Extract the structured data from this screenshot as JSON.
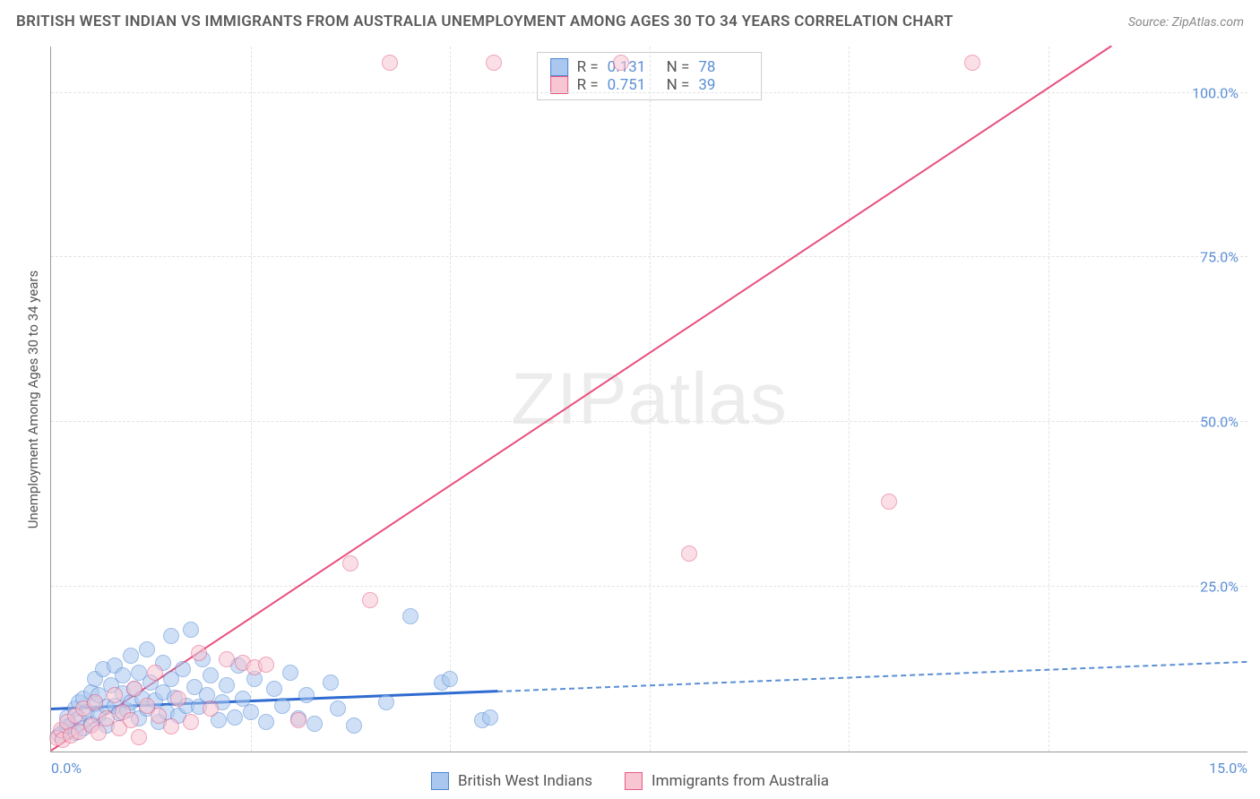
{
  "title": "BRITISH WEST INDIAN VS IMMIGRANTS FROM AUSTRALIA UNEMPLOYMENT AMONG AGES 30 TO 34 YEARS CORRELATION CHART",
  "source_label": "Source: ZipAtlas.com",
  "y_axis_label": "Unemployment Among Ages 30 to 34 years",
  "watermark_a": "ZIP",
  "watermark_b": "atlas",
  "chart": {
    "type": "scatter",
    "xlim": [
      0,
      15
    ],
    "ylim": [
      0,
      107
    ],
    "x_ticks": [
      {
        "pos": 0,
        "label": "0.0%"
      },
      {
        "pos": 15,
        "label": "15.0%"
      }
    ],
    "x_grid": [
      2.5,
      5,
      7.5,
      10,
      12.5
    ],
    "y_ticks": [
      {
        "pos": 25,
        "label": "25.0%"
      },
      {
        "pos": 50,
        "label": "50.0%"
      },
      {
        "pos": 75,
        "label": "75.0%"
      },
      {
        "pos": 100,
        "label": "100.0%"
      }
    ],
    "background_color": "#ffffff",
    "grid_color": "#e2e2e2",
    "axis_color": "#999999",
    "tick_label_color": "#5b8fd6",
    "point_radius": 9,
    "point_opacity": 0.55,
    "series": [
      {
        "name": "British West Indians",
        "fill": "#a9c7ef",
        "stroke": "#4f86d4",
        "r_value": "0.131",
        "n_value": "78",
        "trend": {
          "color": "#2f6bd0",
          "width": 3,
          "x1": 0,
          "y1": 6.3,
          "x2": 5.6,
          "y2": 9.0,
          "dash_to_x": 15,
          "dash_to_y": 13.5
        },
        "points": [
          [
            0.1,
            2.5
          ],
          [
            0.15,
            3.0
          ],
          [
            0.2,
            3.8
          ],
          [
            0.2,
            5.2
          ],
          [
            0.25,
            4.0
          ],
          [
            0.3,
            6.5
          ],
          [
            0.3,
            2.8
          ],
          [
            0.35,
            7.5
          ],
          [
            0.35,
            5.0
          ],
          [
            0.4,
            8.0
          ],
          [
            0.4,
            3.5
          ],
          [
            0.45,
            6.0
          ],
          [
            0.5,
            9.0
          ],
          [
            0.5,
            4.2
          ],
          [
            0.55,
            7.2
          ],
          [
            0.55,
            11.0
          ],
          [
            0.6,
            5.5
          ],
          [
            0.6,
            8.5
          ],
          [
            0.65,
            12.5
          ],
          [
            0.7,
            6.8
          ],
          [
            0.7,
            4.0
          ],
          [
            0.75,
            10.0
          ],
          [
            0.8,
            7.0
          ],
          [
            0.8,
            13.0
          ],
          [
            0.85,
            5.8
          ],
          [
            0.9,
            8.8
          ],
          [
            0.9,
            11.5
          ],
          [
            0.95,
            6.2
          ],
          [
            1.0,
            14.5
          ],
          [
            1.0,
            7.5
          ],
          [
            1.05,
            9.5
          ],
          [
            1.1,
            5.0
          ],
          [
            1.1,
            12.0
          ],
          [
            1.15,
            8.0
          ],
          [
            1.2,
            6.5
          ],
          [
            1.2,
            15.5
          ],
          [
            1.25,
            10.5
          ],
          [
            1.3,
            7.8
          ],
          [
            1.35,
            4.5
          ],
          [
            1.4,
            9.0
          ],
          [
            1.4,
            13.5
          ],
          [
            1.45,
            6.0
          ],
          [
            1.5,
            11.0
          ],
          [
            1.5,
            17.5
          ],
          [
            1.55,
            8.2
          ],
          [
            1.6,
            5.5
          ],
          [
            1.65,
            12.5
          ],
          [
            1.7,
            7.0
          ],
          [
            1.75,
            18.5
          ],
          [
            1.8,
            9.8
          ],
          [
            1.85,
            6.8
          ],
          [
            1.9,
            14.0
          ],
          [
            1.95,
            8.5
          ],
          [
            2.0,
            11.5
          ],
          [
            2.1,
            4.8
          ],
          [
            2.15,
            7.5
          ],
          [
            2.2,
            10.0
          ],
          [
            2.3,
            5.2
          ],
          [
            2.35,
            13.0
          ],
          [
            2.4,
            8.0
          ],
          [
            2.5,
            6.0
          ],
          [
            2.55,
            11.0
          ],
          [
            2.7,
            4.5
          ],
          [
            2.8,
            9.5
          ],
          [
            2.9,
            7.0
          ],
          [
            3.0,
            12.0
          ],
          [
            3.1,
            5.0
          ],
          [
            3.2,
            8.5
          ],
          [
            3.3,
            4.2
          ],
          [
            3.5,
            10.5
          ],
          [
            3.6,
            6.5
          ],
          [
            3.8,
            4.0
          ],
          [
            4.2,
            7.5
          ],
          [
            4.5,
            20.5
          ],
          [
            4.9,
            10.5
          ],
          [
            5.0,
            11.0
          ],
          [
            5.4,
            4.8
          ],
          [
            5.5,
            5.2
          ]
        ]
      },
      {
        "name": "Immigrants from Australia",
        "fill": "#f7c6d2",
        "stroke": "#e55b84",
        "r_value": "0.751",
        "n_value": "39",
        "trend": {
          "color": "#e94f7d",
          "width": 2,
          "x1": 0,
          "y1": 0,
          "x2": 13.3,
          "y2": 107
        },
        "points": [
          [
            0.08,
            2.0
          ],
          [
            0.12,
            3.2
          ],
          [
            0.15,
            1.8
          ],
          [
            0.2,
            4.5
          ],
          [
            0.25,
            2.5
          ],
          [
            0.3,
            5.5
          ],
          [
            0.35,
            3.0
          ],
          [
            0.4,
            6.5
          ],
          [
            0.5,
            4.0
          ],
          [
            0.55,
            7.5
          ],
          [
            0.6,
            2.8
          ],
          [
            0.7,
            5.0
          ],
          [
            0.8,
            8.5
          ],
          [
            0.85,
            3.5
          ],
          [
            0.9,
            6.0
          ],
          [
            1.0,
            4.8
          ],
          [
            1.05,
            9.5
          ],
          [
            1.1,
            2.2
          ],
          [
            1.2,
            7.0
          ],
          [
            1.3,
            12.0
          ],
          [
            1.35,
            5.5
          ],
          [
            1.5,
            3.8
          ],
          [
            1.6,
            8.0
          ],
          [
            1.75,
            4.5
          ],
          [
            1.85,
            15.0
          ],
          [
            2.0,
            6.5
          ],
          [
            2.2,
            14.0
          ],
          [
            2.4,
            13.5
          ],
          [
            2.55,
            12.8
          ],
          [
            2.7,
            13.2
          ],
          [
            3.1,
            4.8
          ],
          [
            3.75,
            28.5
          ],
          [
            4.0,
            23.0
          ],
          [
            4.25,
            104.5
          ],
          [
            5.55,
            104.5
          ],
          [
            7.15,
            104.5
          ],
          [
            8.0,
            30.0
          ],
          [
            10.5,
            38.0
          ],
          [
            11.55,
            104.5
          ]
        ]
      }
    ]
  },
  "legend_top": {
    "r_label": "R  =",
    "n_label": "N  ="
  },
  "legend_bottom": {
    "series_a": "British West Indians",
    "series_b": "Immigrants from Australia"
  }
}
